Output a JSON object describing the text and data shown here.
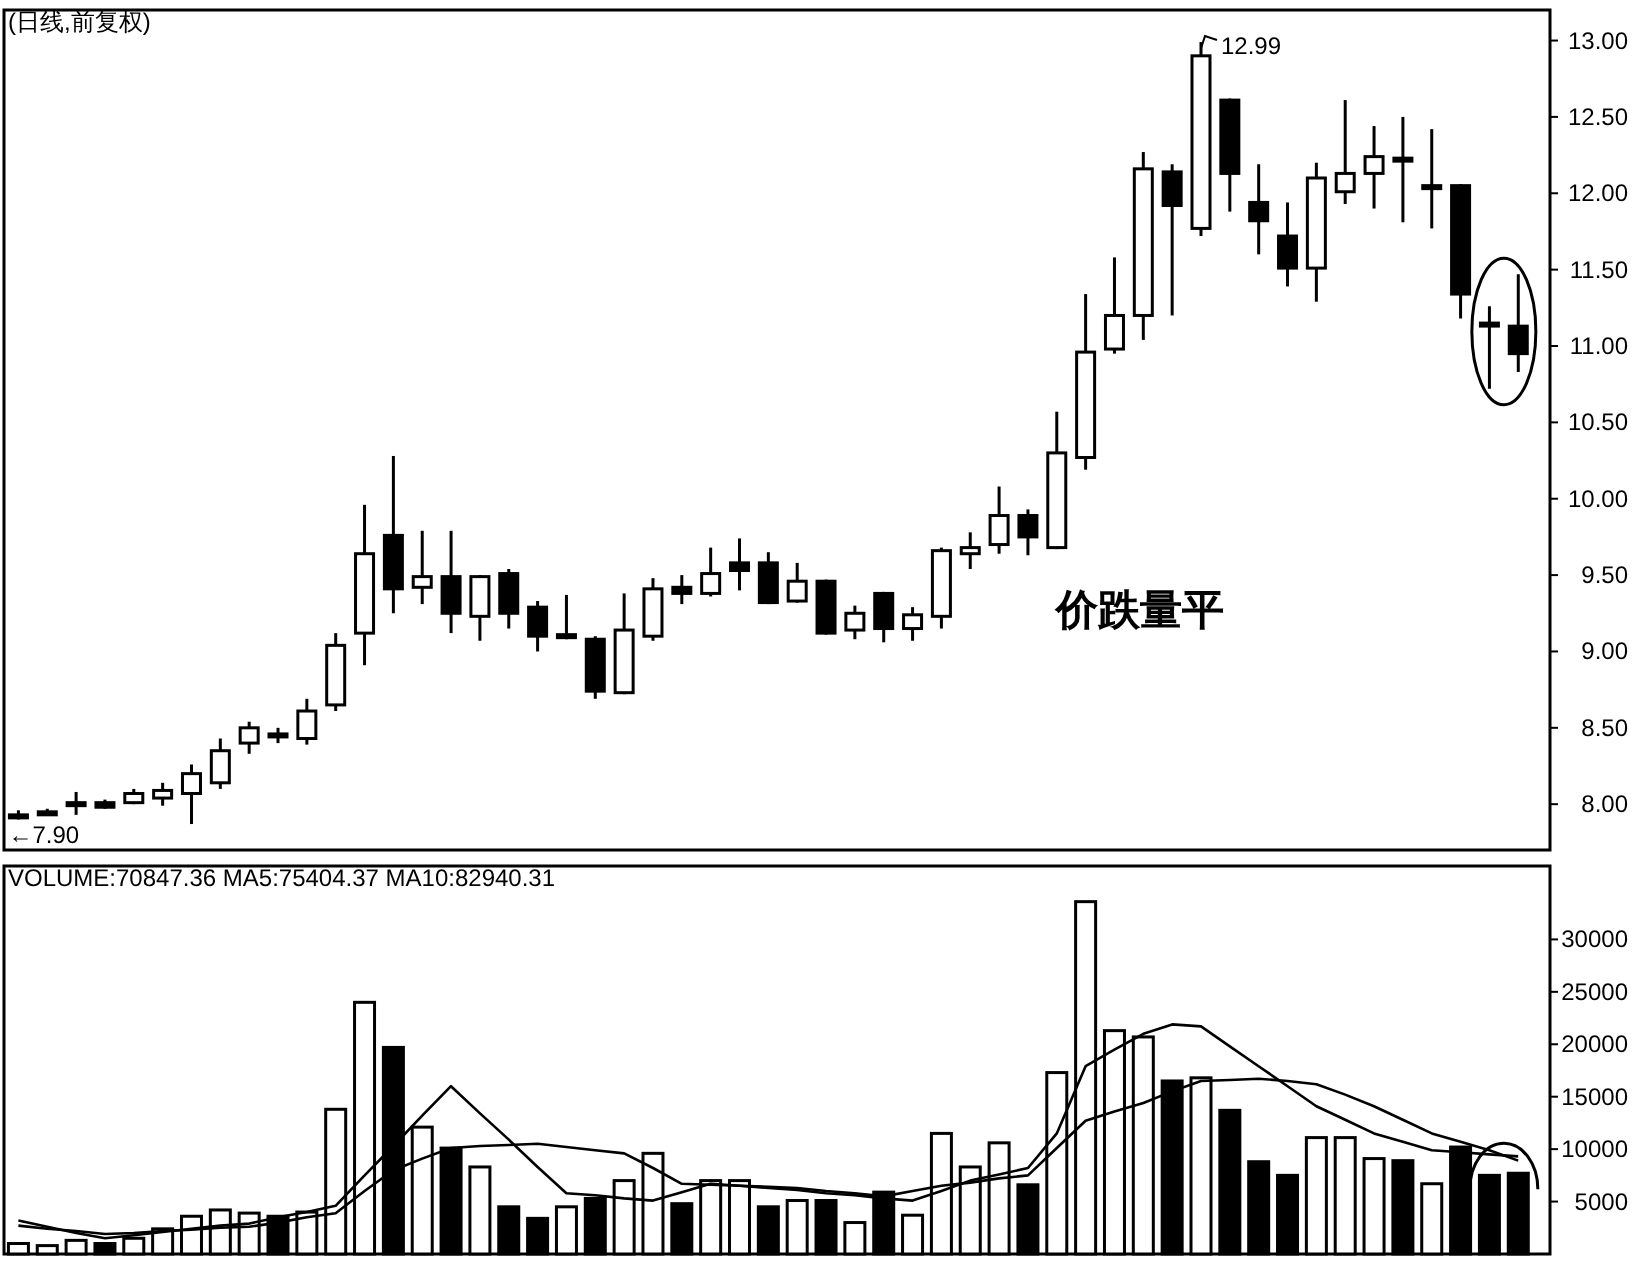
{
  "chart_data": [
    {
      "type": "candlestick",
      "title": "(日线,前复权)",
      "categories": [
        null,
        null,
        null,
        null,
        null,
        null,
        null,
        null,
        null,
        null,
        null,
        null,
        null,
        null,
        null,
        null,
        null,
        null,
        null,
        null,
        null,
        null,
        null,
        null,
        null,
        null,
        null,
        null,
        null,
        null,
        null,
        null,
        null,
        null,
        null,
        null,
        null,
        null,
        null,
        null,
        null,
        null,
        null,
        null,
        null,
        null,
        null,
        null,
        null,
        null,
        null,
        null,
        null
      ],
      "ohlc": [
        [
          7.93,
          7.96,
          7.9,
          7.93
        ],
        [
          7.95,
          7.97,
          7.93,
          7.95
        ],
        [
          8.01,
          8.08,
          7.93,
          8.01
        ],
        [
          8.01,
          8.03,
          7.97,
          7.98
        ],
        [
          8.01,
          8.1,
          8.0,
          8.07
        ],
        [
          8.04,
          8.14,
          7.99,
          8.09
        ],
        [
          8.07,
          8.26,
          7.87,
          8.2
        ],
        [
          8.14,
          8.43,
          8.1,
          8.35
        ],
        [
          8.4,
          8.54,
          8.33,
          8.5
        ],
        [
          8.46,
          8.5,
          8.4,
          8.46
        ],
        [
          8.43,
          8.69,
          8.39,
          8.61
        ],
        [
          8.65,
          9.12,
          8.61,
          9.04
        ],
        [
          9.12,
          9.96,
          8.91,
          9.64
        ],
        [
          9.76,
          10.28,
          9.25,
          9.41
        ],
        [
          9.42,
          9.79,
          9.31,
          9.49
        ],
        [
          9.49,
          9.79,
          9.12,
          9.25
        ],
        [
          9.23,
          9.5,
          9.07,
          9.49
        ],
        [
          9.51,
          9.54,
          9.15,
          9.25
        ],
        [
          9.29,
          9.33,
          9.0,
          9.1
        ],
        [
          9.11,
          9.37,
          9.08,
          9.11
        ],
        [
          9.08,
          9.1,
          8.69,
          8.74
        ],
        [
          8.73,
          9.38,
          8.72,
          9.14
        ],
        [
          9.1,
          9.48,
          9.07,
          9.41
        ],
        [
          9.42,
          9.5,
          9.31,
          9.38
        ],
        [
          9.38,
          9.68,
          9.36,
          9.51
        ],
        [
          9.58,
          9.74,
          9.4,
          9.53
        ],
        [
          9.58,
          9.65,
          9.31,
          9.32
        ],
        [
          9.33,
          9.58,
          9.32,
          9.46
        ],
        [
          9.46,
          9.47,
          9.11,
          9.12
        ],
        [
          9.14,
          9.3,
          9.08,
          9.25
        ],
        [
          9.38,
          9.39,
          9.06,
          9.15
        ],
        [
          9.15,
          9.29,
          9.07,
          9.24
        ],
        [
          9.23,
          9.68,
          9.15,
          9.66
        ],
        [
          9.64,
          9.78,
          9.54,
          9.68
        ],
        [
          9.7,
          10.08,
          9.64,
          9.89
        ],
        [
          9.89,
          9.93,
          9.63,
          9.75
        ],
        [
          9.68,
          10.57,
          9.67,
          10.3
        ],
        [
          10.27,
          11.34,
          10.19,
          10.96
        ],
        [
          10.98,
          11.58,
          10.95,
          11.2
        ],
        [
          11.2,
          12.27,
          11.04,
          12.16
        ],
        [
          12.14,
          12.19,
          11.2,
          11.92
        ],
        [
          11.77,
          12.99,
          11.72,
          12.9
        ],
        [
          12.61,
          12.62,
          11.88,
          12.13
        ],
        [
          11.94,
          12.19,
          11.6,
          11.82
        ],
        [
          11.72,
          11.94,
          11.39,
          11.51
        ],
        [
          11.51,
          12.2,
          11.29,
          12.1
        ],
        [
          12.01,
          12.61,
          11.93,
          12.13
        ],
        [
          12.13,
          12.44,
          11.9,
          12.24
        ],
        [
          12.23,
          12.5,
          11.81,
          12.23
        ],
        [
          12.05,
          12.42,
          11.77,
          12.05
        ],
        [
          12.05,
          12.06,
          11.18,
          11.34
        ],
        [
          11.15,
          11.26,
          10.72,
          11.15
        ],
        [
          11.13,
          11.47,
          10.83,
          10.95
        ]
      ],
      "ylim": [
        7.7,
        13.2
      ],
      "yticks": [
        {
          "value": 8,
          "label": "8.00"
        },
        {
          "value": 8.5,
          "label": "8.50"
        },
        {
          "value": 9,
          "label": "9.00"
        },
        {
          "value": 9.5,
          "label": "9.50"
        },
        {
          "value": 10,
          "label": "10.00"
        },
        {
          "value": 10.5,
          "label": "10.50"
        },
        {
          "value": 11,
          "label": "11.00"
        },
        {
          "value": 11.5,
          "label": "11.50"
        },
        {
          "value": 12,
          "label": "12.00"
        },
        {
          "value": 12.5,
          "label": "12.50"
        },
        {
          "value": 13,
          "label": "13.00"
        }
      ],
      "tick_labels": "y",
      "annotations": [
        "12.99",
        {
          "text": "←7.90",
          "y": 7.9
        },
        "价跌量平"
      ]
    },
    {
      "type": "bar",
      "title": "VOLUME:70847.36 MA5:75404.37 MA10:82940.31",
      "categories": [
        null,
        null,
        null,
        null,
        null,
        null,
        null,
        null,
        null,
        null,
        null,
        null,
        null,
        null,
        null,
        null,
        null,
        null,
        null,
        null,
        null,
        null,
        null,
        null,
        null,
        null,
        null,
        null,
        null,
        null,
        null,
        null,
        null,
        null,
        null,
        null,
        null,
        null,
        null,
        null,
        null,
        null,
        null,
        null,
        null,
        null,
        null,
        null,
        null,
        null,
        null,
        null,
        null
      ],
      "ylim": [
        0,
        37000
      ],
      "yticks": [
        5000,
        10000,
        15000,
        20000,
        25000,
        30000
      ],
      "tick_labels": "y",
      "values": [
        1000,
        800,
        1300,
        1000,
        1500,
        2400,
        3600,
        4200,
        3900,
        3600,
        4000,
        13800,
        24000,
        19700,
        12100,
        10100,
        8300,
        4500,
        3400,
        4500,
        5300,
        7000,
        9600,
        4800,
        7000,
        7000,
        4500,
        5100,
        5100,
        3000,
        5900,
        3700,
        11500,
        8300,
        10600,
        6600,
        17300,
        33600,
        21300,
        20700,
        16500,
        16800,
        13700,
        8800,
        7500,
        11100,
        11100,
        9100,
        8900,
        6700,
        10200,
        7500,
        7700
      ],
      "colors": [
        "#ffffff",
        "#ffffff",
        "#ffffff",
        "#000000",
        "#ffffff",
        "#ffffff",
        "#ffffff",
        "#ffffff",
        "#ffffff",
        "#000000",
        "#ffffff",
        "#ffffff",
        "#ffffff",
        "#000000",
        "#ffffff",
        "#000000",
        "#ffffff",
        "#000000",
        "#000000",
        "#ffffff",
        "#000000",
        "#ffffff",
        "#ffffff",
        "#000000",
        "#ffffff",
        "#ffffff",
        "#000000",
        "#ffffff",
        "#000000",
        "#ffffff",
        "#000000",
        "#ffffff",
        "#ffffff",
        "#ffffff",
        "#ffffff",
        "#000000",
        "#ffffff",
        "#ffffff",
        "#ffffff",
        "#ffffff",
        "#000000",
        "#ffffff",
        "#000000",
        "#000000",
        "#000000",
        "#ffffff",
        "#ffffff",
        "#ffffff",
        "#000000",
        "#ffffff",
        "#000000",
        "#000000",
        "#000000"
      ]
    },
    {
      "type": "line",
      "categories": [
        null,
        null,
        null,
        null,
        null,
        null,
        null,
        null,
        null,
        null,
        null,
        null,
        null,
        null,
        null,
        null,
        null,
        null,
        null,
        null,
        null,
        null,
        null,
        null,
        null,
        null,
        null,
        null,
        null,
        null,
        null,
        null,
        null,
        null,
        null,
        null,
        null,
        null,
        null,
        null,
        null,
        null,
        null,
        null,
        null,
        null,
        null,
        null,
        null,
        null,
        null,
        null,
        null
      ],
      "ylim": [
        0,
        37000
      ],
      "tick_labels": false,
      "series": [
        {
          "color": "#000000",
          "values": [
            3200,
            2600,
            2000,
            1500,
            1800,
            2100,
            2400,
            2700,
            2900,
            3500,
            4000,
            4600,
            7500,
            10300,
            13200,
            16000,
            13400,
            10900,
            8300,
            5800,
            5600,
            5300,
            5100,
            5900,
            6700,
            6500,
            6300,
            6100,
            5800,
            5600,
            5300,
            5100,
            6000,
            7000,
            7600,
            8200,
            11500,
            17900,
            19500,
            21000,
            21900,
            21700,
            19800,
            17900,
            16000,
            14100,
            12800,
            11500,
            10700,
            9900,
            9700,
            9500,
            9300
          ]
        },
        {
          "color": "#000000",
          "values": [
            2700,
            2400,
            2200,
            1900,
            2000,
            2200,
            2300,
            2500,
            2600,
            3000,
            3500,
            3900,
            6000,
            8000,
            9100,
            10100,
            10300,
            10400,
            10500,
            10200,
            9900,
            9600,
            8200,
            6700,
            6600,
            6500,
            6400,
            6300,
            6000,
            5800,
            5500,
            6000,
            6500,
            6800,
            7200,
            7500,
            10100,
            12700,
            13600,
            14400,
            15500,
            16500,
            16600,
            16700,
            16500,
            16200,
            15200,
            14100,
            12800,
            11500,
            10700,
            9900,
            8900
          ]
        }
      ]
    }
  ]
}
